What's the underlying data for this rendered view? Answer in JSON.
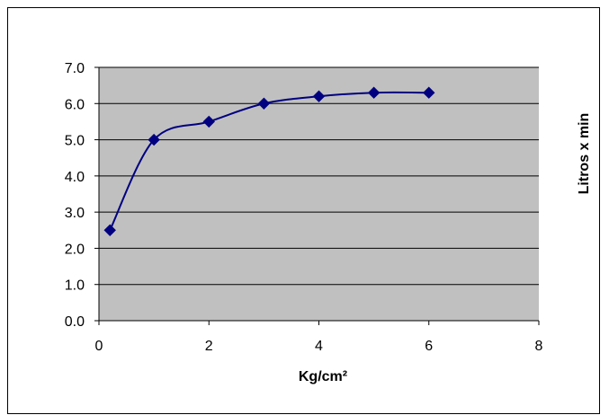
{
  "chart_data": {
    "type": "scatter",
    "title": "",
    "xlabel": "Kg/cm²",
    "ylabel": "Litros x min",
    "xlim": [
      0,
      8
    ],
    "ylim": [
      0,
      7
    ],
    "x_ticks": [
      "0",
      "2",
      "4",
      "6",
      "8"
    ],
    "y_ticks": [
      "0.0",
      "1.0",
      "2.0",
      "3.0",
      "4.0",
      "5.0",
      "6.0",
      "7.0"
    ],
    "grid": "horizontal",
    "legend": "none",
    "line": "smoothed",
    "marker": "diamond",
    "series": [
      {
        "x": [
          0.2,
          1,
          2,
          3,
          4,
          5,
          6
        ],
        "values": [
          2.5,
          5.0,
          5.5,
          6.0,
          6.2,
          6.3,
          6.3
        ]
      }
    ],
    "colors": {
      "plot_area": "#c0c0c0",
      "series": "#000080",
      "grid": "#000000"
    }
  }
}
